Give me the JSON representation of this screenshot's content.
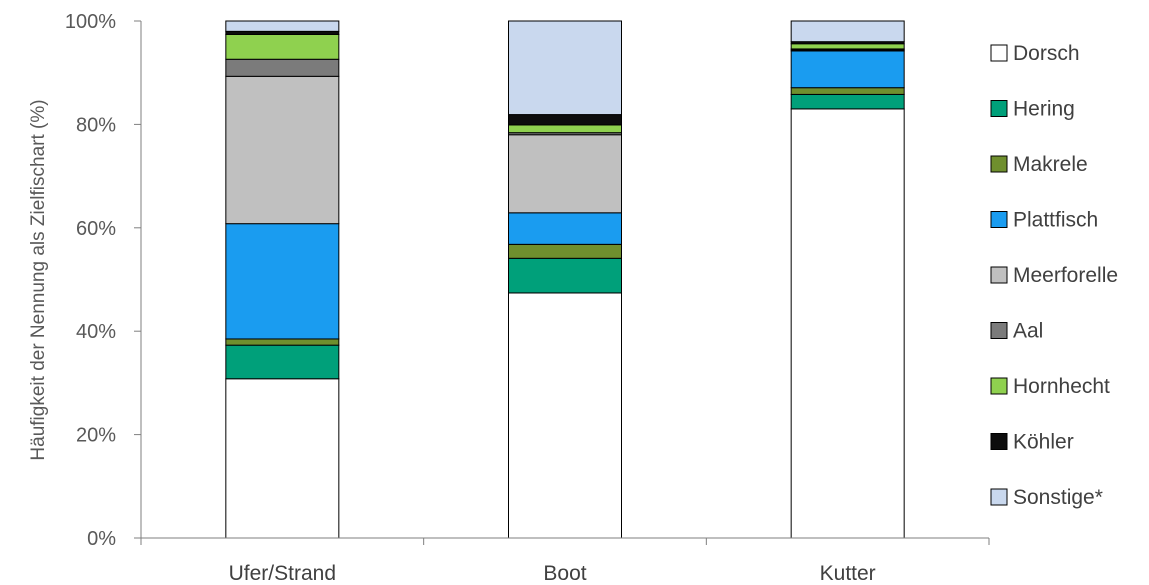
{
  "chart_data": {
    "type": "bar",
    "stacked": true,
    "title": "",
    "xlabel": "",
    "ylabel": "Häufigkeit der Nennung als Zielfischart (%)",
    "ylim": [
      0,
      100
    ],
    "yticks": [
      "0%",
      "20%",
      "40%",
      "60%",
      "80%",
      "100%"
    ],
    "grid": false,
    "legend_position": "right",
    "categories": [
      "Ufer/Strand",
      "Boot",
      "Kutter"
    ],
    "series": [
      {
        "name": "Dorsch",
        "color": "#ffffff",
        "values": [
          30.8,
          47.4,
          83.0
        ]
      },
      {
        "name": "Hering",
        "color": "#00a07a",
        "values": [
          6.5,
          6.7,
          2.8
        ]
      },
      {
        "name": "Makrele",
        "color": "#6f8f2e",
        "values": [
          1.2,
          2.7,
          1.3
        ]
      },
      {
        "name": "Plattfisch",
        "color": "#1a9cf0",
        "values": [
          22.3,
          6.1,
          7.1
        ]
      },
      {
        "name": "Meerforelle",
        "color": "#c0c0c0",
        "values": [
          28.5,
          15.1,
          0.2
        ]
      },
      {
        "name": "Aal",
        "color": "#7b7b7b",
        "values": [
          3.3,
          0.4,
          0.2
        ]
      },
      {
        "name": "Hornhecht",
        "color": "#8fd14f",
        "values": [
          4.8,
          1.5,
          1.0
        ]
      },
      {
        "name": "Köhler",
        "color": "#0d0d0d",
        "values": [
          0.6,
          2.0,
          0.4
        ]
      },
      {
        "name": "Sonstige*",
        "color": "#c9d8ee",
        "values": [
          2.0,
          18.1,
          4.0
        ]
      }
    ]
  }
}
